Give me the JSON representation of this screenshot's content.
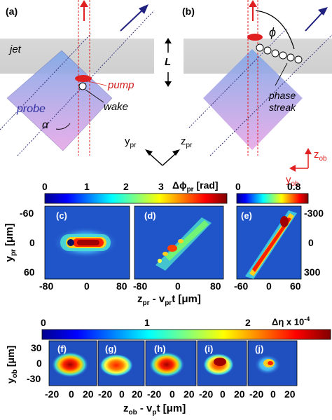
{
  "top": {
    "panel_a": "(a)",
    "panel_b": "(b)",
    "jet": "jet",
    "L": "L",
    "pump": "pump",
    "wake": "wake",
    "probe": "probe",
    "alpha": "α",
    "phi": "ϕ",
    "phase_streak_1": "phase",
    "phase_streak_2": "streak",
    "axis_ypr": "y",
    "axis_ypr_sub": "pr",
    "axis_zpr": "z",
    "axis_zpr_sub": "pr",
    "axis_zob": "z",
    "axis_zob_sub": "ob",
    "axis_yob": "y",
    "axis_yob_sub": "ob"
  },
  "mid": {
    "cb1_ticks": [
      "0",
      "1",
      "2",
      "3"
    ],
    "cb1_label": "Δϕ",
    "cb1_label_sub": "pr",
    "cb1_unit": " [rad]",
    "cb2_ticks": [
      "0",
      "0.8"
    ],
    "panel_c": "(c)",
    "panel_d": "(d)",
    "panel_e": "(e)",
    "y_ticks_left": [
      "-60",
      "0",
      "60"
    ],
    "y_ticks_right": [
      "-300",
      "0",
      "300"
    ],
    "x_ticks_c": [
      "-80",
      "0",
      "80"
    ],
    "x_ticks_d": [
      "-80",
      "0",
      "80"
    ],
    "x_ticks_e": [
      "-60",
      "0",
      "60"
    ],
    "ylabel": "y",
    "ylabel_sub": "pr",
    "ylabel_unit": " [μm]",
    "xlabel": "z",
    "xlabel_sub": "pr",
    "xlabel_mid": " - v",
    "xlabel_sub2": "pr",
    "xlabel_unit": "t [μm]"
  },
  "bot": {
    "cb_ticks": [
      "0",
      "1",
      "2"
    ],
    "cb_label": "Δη x 10",
    "cb_exp": "-4",
    "panels": [
      "(f)",
      "(g)",
      "(h)",
      "(i)",
      "(j)"
    ],
    "y_ticks": [
      "30",
      "0",
      "-30"
    ],
    "x_ticks": [
      "-20",
      "0",
      "20"
    ],
    "ylabel": "y",
    "ylabel_sub": "ob",
    "ylabel_unit": " [μm]",
    "xlabel": "z",
    "xlabel_sub": "ob",
    "xlabel_mid": " - v",
    "xlabel_sub2": "p",
    "xlabel_unit": "t [μm]"
  }
}
